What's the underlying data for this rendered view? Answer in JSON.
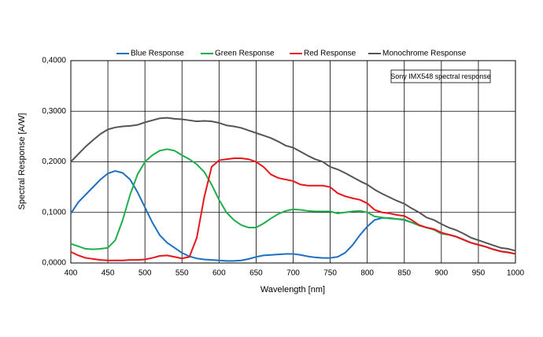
{
  "chart_data": {
    "type": "line",
    "annotation": "Sony IMX548 spectral response",
    "x_label": "Wavelength [nm]",
    "y_label": "Spectral Response [A/W]",
    "x": [
      400,
      410,
      420,
      430,
      440,
      450,
      460,
      470,
      480,
      490,
      500,
      510,
      520,
      530,
      540,
      550,
      560,
      570,
      580,
      590,
      600,
      610,
      620,
      630,
      640,
      650,
      660,
      670,
      680,
      690,
      700,
      710,
      720,
      730,
      740,
      750,
      760,
      770,
      780,
      790,
      800,
      810,
      820,
      830,
      840,
      850,
      860,
      870,
      880,
      890,
      900,
      910,
      920,
      930,
      940,
      950,
      960,
      970,
      980,
      990,
      1000
    ],
    "series": [
      {
        "name": "Blue Response",
        "color": "#1f6fc0",
        "values": [
          0.098,
          0.12,
          0.135,
          0.15,
          0.165,
          0.177,
          0.182,
          0.178,
          0.165,
          0.14,
          0.11,
          0.08,
          0.055,
          0.04,
          0.03,
          0.02,
          0.013,
          0.009,
          0.007,
          0.006,
          0.005,
          0.004,
          0.004,
          0.005,
          0.008,
          0.012,
          0.015,
          0.016,
          0.017,
          0.018,
          0.018,
          0.016,
          0.013,
          0.011,
          0.01,
          0.01,
          0.012,
          0.02,
          0.035,
          0.055,
          0.072,
          0.085,
          0.089,
          0.089,
          0.087,
          0.085,
          0.08,
          0.075,
          0.07,
          0.066,
          0.058,
          0.056,
          0.052,
          0.046,
          0.04,
          0.036,
          0.032,
          0.027,
          0.023,
          0.021,
          0.018
        ]
      },
      {
        "name": "Green Response",
        "color": "#1fae4b",
        "values": [
          0.038,
          0.033,
          0.028,
          0.027,
          0.028,
          0.03,
          0.045,
          0.085,
          0.135,
          0.175,
          0.2,
          0.213,
          0.222,
          0.225,
          0.222,
          0.213,
          0.205,
          0.195,
          0.18,
          0.155,
          0.125,
          0.1,
          0.085,
          0.075,
          0.07,
          0.07,
          0.078,
          0.088,
          0.097,
          0.103,
          0.106,
          0.105,
          0.103,
          0.102,
          0.102,
          0.102,
          0.098,
          0.1,
          0.102,
          0.103,
          0.1,
          0.092,
          0.09,
          0.088,
          0.087,
          0.086,
          0.08,
          0.074,
          0.07,
          0.066,
          0.058,
          0.056,
          0.052,
          0.046,
          0.04,
          0.036,
          0.032,
          0.027,
          0.023,
          0.021,
          0.018
        ]
      },
      {
        "name": "Red Response",
        "color": "#e8161b",
        "values": [
          0.022,
          0.015,
          0.01,
          0.008,
          0.006,
          0.005,
          0.005,
          0.005,
          0.006,
          0.006,
          0.007,
          0.01,
          0.014,
          0.015,
          0.012,
          0.009,
          0.012,
          0.05,
          0.13,
          0.19,
          0.203,
          0.205,
          0.207,
          0.207,
          0.205,
          0.2,
          0.19,
          0.175,
          0.168,
          0.165,
          0.162,
          0.155,
          0.153,
          0.153,
          0.153,
          0.15,
          0.138,
          0.132,
          0.128,
          0.125,
          0.118,
          0.105,
          0.1,
          0.098,
          0.095,
          0.093,
          0.085,
          0.075,
          0.07,
          0.067,
          0.06,
          0.056,
          0.052,
          0.046,
          0.04,
          0.036,
          0.032,
          0.027,
          0.023,
          0.021,
          0.018
        ]
      },
      {
        "name": "Monochrome Response",
        "color": "#555555",
        "values": [
          0.2,
          0.215,
          0.23,
          0.243,
          0.255,
          0.264,
          0.268,
          0.27,
          0.271,
          0.273,
          0.278,
          0.282,
          0.286,
          0.287,
          0.285,
          0.284,
          0.282,
          0.28,
          0.281,
          0.28,
          0.277,
          0.272,
          0.27,
          0.267,
          0.262,
          0.257,
          0.252,
          0.247,
          0.24,
          0.232,
          0.228,
          0.22,
          0.212,
          0.205,
          0.2,
          0.19,
          0.185,
          0.178,
          0.17,
          0.162,
          0.155,
          0.145,
          0.137,
          0.13,
          0.123,
          0.117,
          0.108,
          0.1,
          0.09,
          0.085,
          0.077,
          0.07,
          0.065,
          0.058,
          0.05,
          0.045,
          0.04,
          0.035,
          0.03,
          0.028,
          0.024
        ]
      }
    ],
    "xlim": [
      400,
      1000
    ],
    "xticks": [
      400,
      450,
      500,
      550,
      600,
      650,
      700,
      750,
      800,
      850,
      900,
      950,
      1000
    ],
    "ylim": [
      0,
      0.4
    ],
    "yticks": [
      {
        "value": 0,
        "label": "0,0000"
      },
      {
        "value": 0.1,
        "label": "0,1000"
      },
      {
        "value": 0.2,
        "label": "0,2000"
      },
      {
        "value": 0.3,
        "label": "0,3000"
      },
      {
        "value": 0.4,
        "label": "0,4000"
      }
    ],
    "grid": true,
    "legend": "top"
  }
}
